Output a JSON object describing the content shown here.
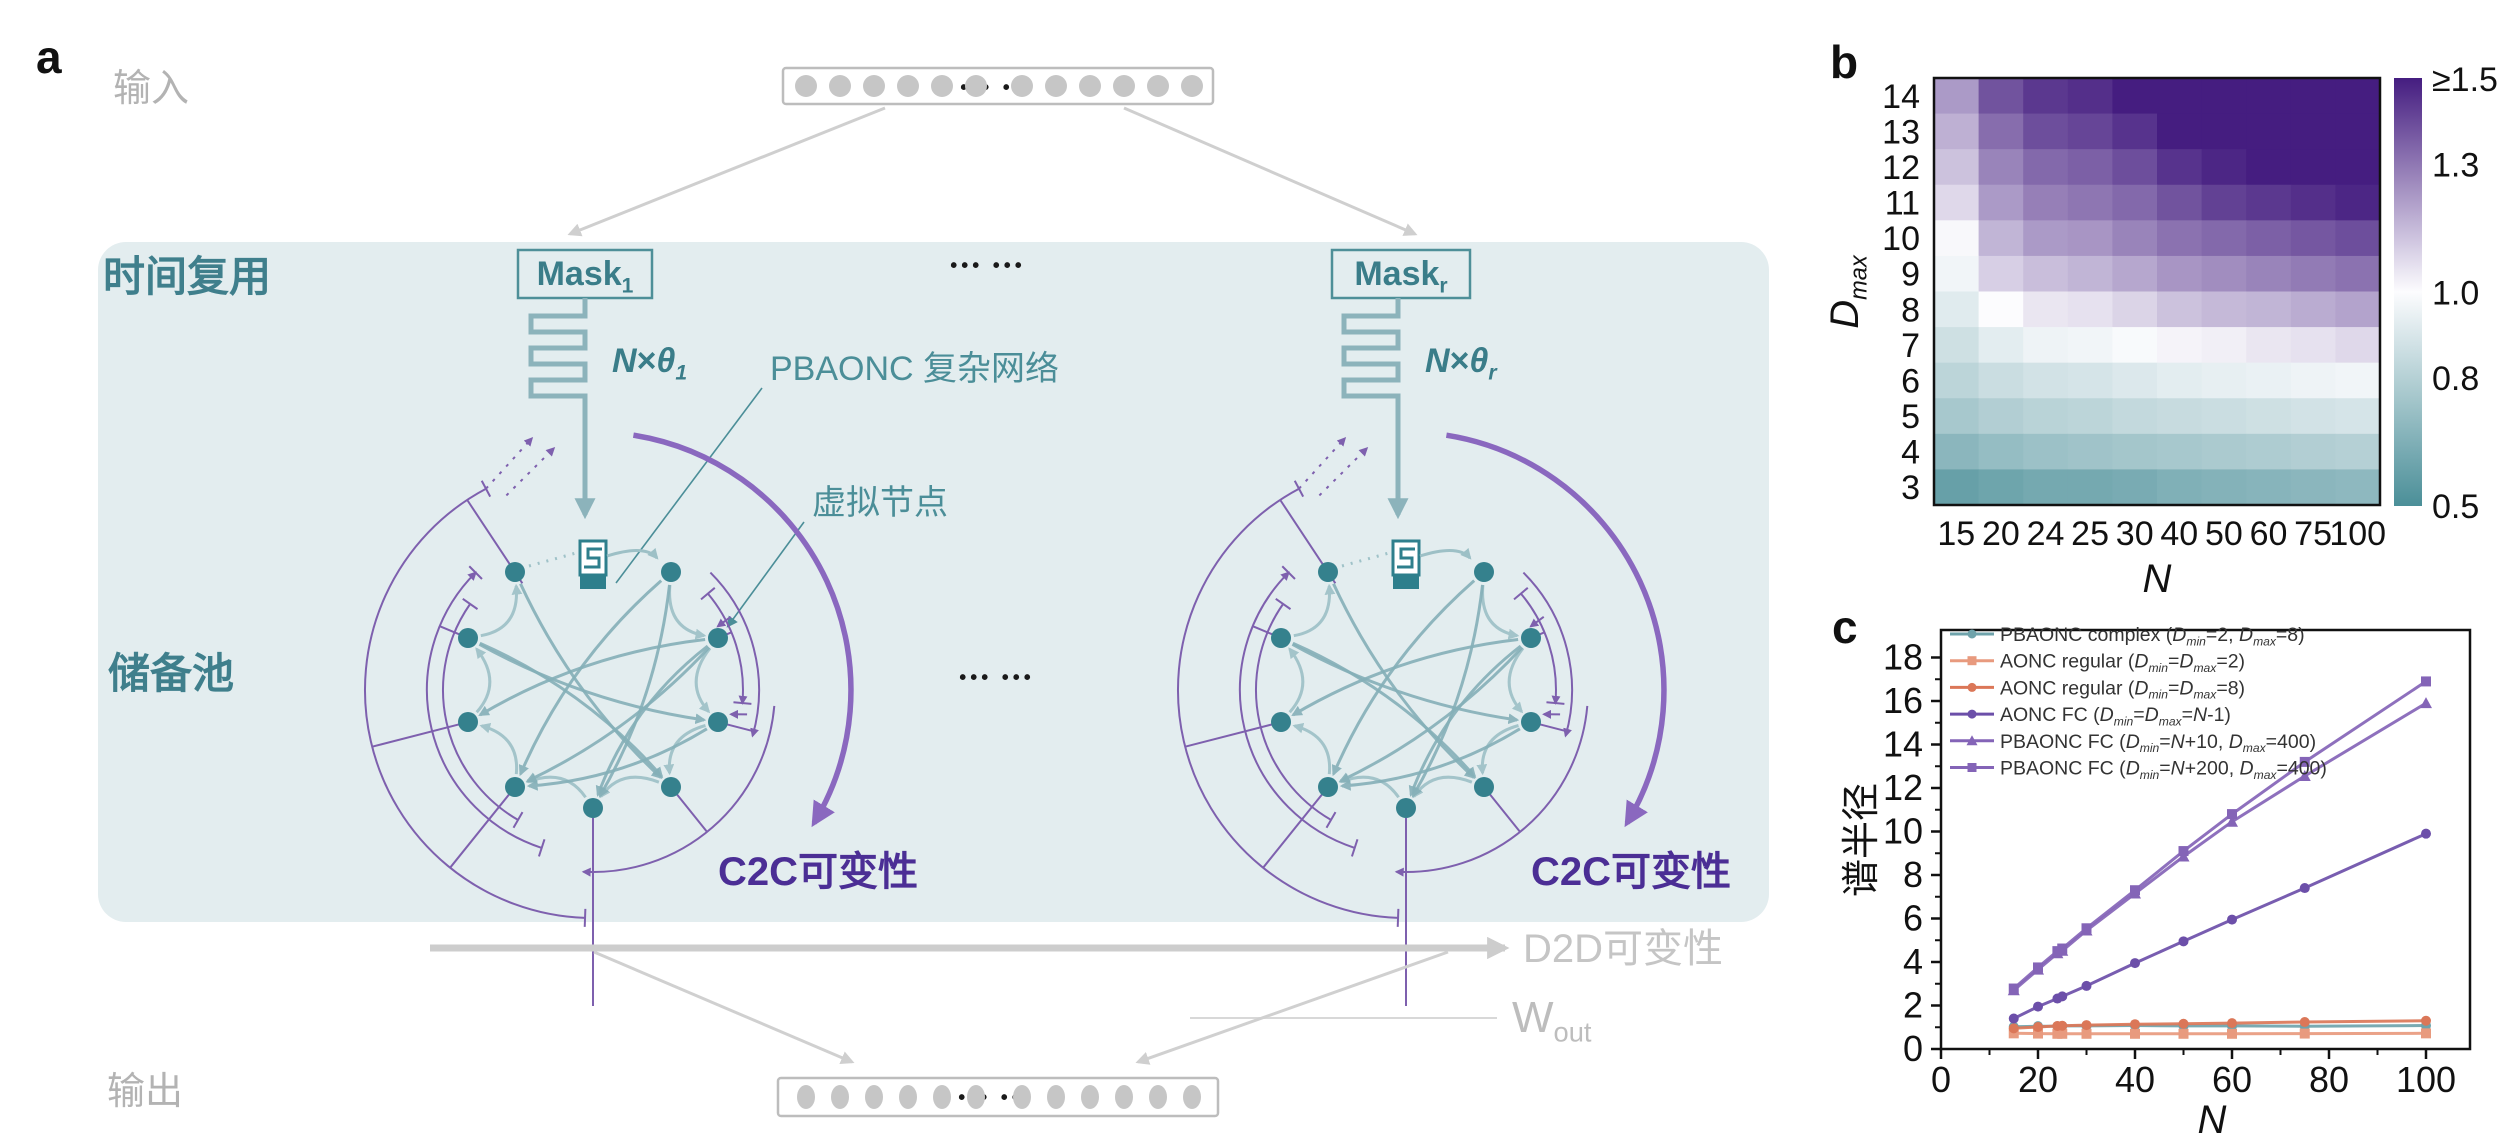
{
  "figure": {
    "panel_a_label": "a",
    "panel_b_label": "b",
    "panel_c_label": "c"
  },
  "colors": {
    "teal_text": "#3f7f8c",
    "teal_callout": "#4b8e98",
    "teal_node": "#35818d",
    "teal_light_arrow": "#8cb3bb",
    "edge_light": "#9dc0c6",
    "edge_dark": "#85b0b8",
    "purple_line": "#7e60ae",
    "purple_arc": "#8a68bf",
    "purple_text": "#4b2e95",
    "gray_label": "#b3b3b3",
    "gray_arrow": "#cfcfcf",
    "panel_bg": "#e3edef",
    "heat_high": "#451d80",
    "heat_mid": "#fcfcfe",
    "heat_low": "#4b8f98"
  },
  "panel_a": {
    "input_label": "输入",
    "output_label": "输出",
    "time_mux_label": "时间复用",
    "reservoir_label": "储备池",
    "dots": "••• •••",
    "mask1_parts": [
      {
        "t": "Mask"
      },
      {
        "b": "1"
      }
    ],
    "maskr_parts": [
      {
        "t": "Mask"
      },
      {
        "b": "r"
      }
    ],
    "ntheta1_parts": [
      {
        "i": "N"
      },
      {
        "t": "×"
      },
      {
        "i": "θ"
      },
      {
        "s": "1"
      }
    ],
    "nthetar_parts": [
      {
        "i": "N"
      },
      {
        "t": "×"
      },
      {
        "i": "θ"
      },
      {
        "s": "r"
      }
    ],
    "pbaonc_label": "PBAONC 复杂网络",
    "virtual_node_label": "虚拟节点",
    "c2c_label": "C2C可变性",
    "d2d_label": "D2D可变性",
    "wout_parts": [
      {
        "t": "W"
      },
      {
        "b": "out"
      }
    ]
  },
  "chart_data": [
    {
      "type": "heatmap",
      "panel": "b",
      "xlabel_parts": [
        {
          "i": "N"
        }
      ],
      "ylabel_parts": [
        {
          "i": "D"
        },
        {
          "s": "max"
        }
      ],
      "x_ticks": [
        "15",
        "20",
        "24",
        "25",
        "30",
        "40",
        "50",
        "60",
        "75",
        "100"
      ],
      "y_ticks": [
        "14",
        "13",
        "12",
        "11",
        "10",
        "9",
        "8",
        "7",
        "6",
        "5",
        "4",
        "3"
      ],
      "colorbar_ticks": [
        {
          "label": "≥1.5",
          "value": 1.5
        },
        {
          "label": "1.3",
          "value": 1.3
        },
        {
          "label": "1.0",
          "value": 1.0
        },
        {
          "label": "0.8",
          "value": 0.8
        },
        {
          "label": "0.5",
          "value": 0.5
        }
      ],
      "colorbar_range": [
        0.5,
        1.5
      ],
      "legend_position": "right",
      "values": [
        [
          1.22,
          1.38,
          1.44,
          1.46,
          1.5,
          1.5,
          1.5,
          1.5,
          1.5,
          1.5
        ],
        [
          1.17,
          1.32,
          1.39,
          1.41,
          1.45,
          1.5,
          1.5,
          1.5,
          1.5,
          1.5
        ],
        [
          1.13,
          1.27,
          1.33,
          1.35,
          1.39,
          1.45,
          1.48,
          1.5,
          1.5,
          1.5
        ],
        [
          1.08,
          1.22,
          1.28,
          1.3,
          1.33,
          1.38,
          1.42,
          1.44,
          1.46,
          1.48
        ],
        [
          1.01,
          1.16,
          1.22,
          1.23,
          1.27,
          1.31,
          1.33,
          1.35,
          1.37,
          1.39
        ],
        [
          0.97,
          1.1,
          1.14,
          1.16,
          1.19,
          1.23,
          1.25,
          1.27,
          1.29,
          1.31
        ],
        [
          0.92,
          1.0,
          1.05,
          1.06,
          1.09,
          1.13,
          1.15,
          1.16,
          1.18,
          1.2
        ],
        [
          0.87,
          0.93,
          0.96,
          0.97,
          0.99,
          1.02,
          1.03,
          1.05,
          1.06,
          1.08
        ],
        [
          0.82,
          0.86,
          0.88,
          0.89,
          0.91,
          0.93,
          0.94,
          0.95,
          0.96,
          0.97
        ],
        [
          0.76,
          0.79,
          0.81,
          0.82,
          0.84,
          0.85,
          0.86,
          0.87,
          0.88,
          0.89
        ],
        [
          0.68,
          0.71,
          0.73,
          0.74,
          0.75,
          0.76,
          0.77,
          0.78,
          0.79,
          0.8
        ],
        [
          0.58,
          0.6,
          0.62,
          0.62,
          0.63,
          0.65,
          0.66,
          0.67,
          0.68,
          0.69
        ]
      ]
    },
    {
      "type": "line",
      "panel": "c",
      "xlabel_parts": [
        {
          "i": "N"
        }
      ],
      "ylabel": "谱半径",
      "xlim": [
        0,
        109
      ],
      "ylim": [
        0,
        19.3
      ],
      "x_ticks": [
        0,
        20,
        40,
        60,
        80,
        100
      ],
      "y_ticks": [
        0,
        2,
        4,
        6,
        8,
        10,
        12,
        14,
        16,
        18
      ],
      "grid": false,
      "legend_position": "top-left",
      "x": [
        15,
        20,
        24,
        25,
        30,
        40,
        50,
        60,
        75,
        100
      ],
      "series": [
        {
          "name_parts": [
            {
              "t": "PBAONC complex ("
            },
            {
              "i": "D"
            },
            {
              "s": "min"
            },
            {
              "t": "=2, "
            },
            {
              "i": "D"
            },
            {
              "s": "max"
            },
            {
              "t": "=8)"
            }
          ],
          "color": "#6fa3ab",
          "marker": "circle",
          "values": [
            1.02,
            1.05,
            1.05,
            1.06,
            1.06,
            1.08,
            1.06,
            1.06,
            1.05,
            1.08
          ]
        },
        {
          "name_parts": [
            {
              "t": "AONC regular ("
            },
            {
              "i": "D"
            },
            {
              "s": "min"
            },
            {
              "t": "="
            },
            {
              "i": "D"
            },
            {
              "s": "max"
            },
            {
              "t": "=2)"
            }
          ],
          "color": "#e89a7e",
          "marker": "square",
          "values": [
            0.72,
            0.71,
            0.7,
            0.7,
            0.7,
            0.7,
            0.7,
            0.7,
            0.71,
            0.72
          ]
        },
        {
          "name_parts": [
            {
              "t": "AONC regular ("
            },
            {
              "i": "D"
            },
            {
              "s": "min"
            },
            {
              "t": "="
            },
            {
              "i": "D"
            },
            {
              "s": "max"
            },
            {
              "t": "=8)"
            }
          ],
          "color": "#db7758",
          "marker": "circle",
          "values": [
            0.95,
            1.01,
            1.06,
            1.07,
            1.1,
            1.14,
            1.16,
            1.19,
            1.24,
            1.3
          ]
        },
        {
          "name_parts": [
            {
              "t": "AONC FC ("
            },
            {
              "i": "D"
            },
            {
              "s": "min"
            },
            {
              "t": "="
            },
            {
              "i": "D"
            },
            {
              "s": "max"
            },
            {
              "t": "="
            },
            {
              "i": "N"
            },
            {
              "t": "-1)"
            }
          ],
          "color": "#6c4fa9",
          "marker": "circle",
          "values": [
            1.4,
            1.95,
            2.32,
            2.42,
            2.9,
            3.95,
            4.95,
            5.95,
            7.4,
            9.9
          ]
        },
        {
          "name_parts": [
            {
              "t": "PBAONC FC ("
            },
            {
              "i": "D"
            },
            {
              "s": "min"
            },
            {
              "t": "="
            },
            {
              "i": "N"
            },
            {
              "t": "+10, "
            },
            {
              "i": "D"
            },
            {
              "s": "max"
            },
            {
              "t": "=400)"
            }
          ],
          "color": "#8464b7",
          "marker": "triangle",
          "values": [
            2.7,
            3.65,
            4.4,
            4.52,
            5.45,
            7.15,
            8.85,
            10.45,
            12.55,
            15.9
          ]
        },
        {
          "name_parts": [
            {
              "t": "PBAONC FC ("
            },
            {
              "i": "D"
            },
            {
              "s": "min"
            },
            {
              "t": "="
            },
            {
              "i": "N"
            },
            {
              "t": "+200, "
            },
            {
              "i": "D"
            },
            {
              "s": "max"
            },
            {
              "t": "=400)"
            }
          ],
          "color": "#8464b7",
          "marker": "square",
          "values": [
            2.78,
            3.75,
            4.5,
            4.62,
            5.55,
            7.3,
            9.1,
            10.8,
            13.2,
            16.9
          ]
        }
      ]
    }
  ]
}
